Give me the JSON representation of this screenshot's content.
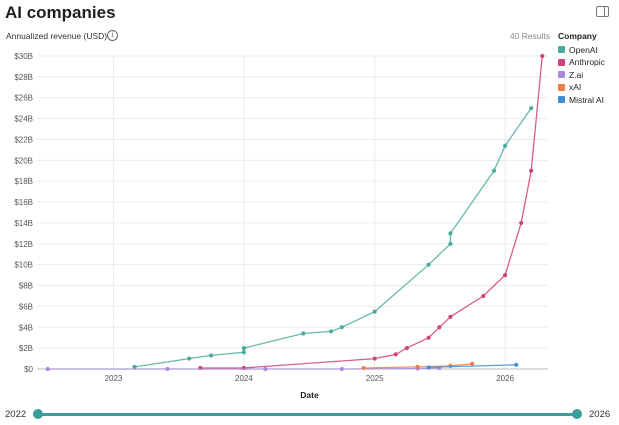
{
  "header": {
    "title": "AI companies",
    "results": "40 Results"
  },
  "chart_data": {
    "type": "line",
    "ylabel": "Annualized revenue (USD)",
    "xlabel": "Date",
    "ylim": [
      0,
      30
    ],
    "xlim": [
      "2022-06-01",
      "2026-05-01"
    ],
    "y_ticks": [
      "$0",
      "$2B",
      "$4B",
      "$6B",
      "$8B",
      "$10B",
      "$12B",
      "$14B",
      "$16B",
      "$18B",
      "$20B",
      "$22B",
      "$24B",
      "$26B",
      "$28B",
      "$30B"
    ],
    "x_ticks": [
      "2023",
      "2024",
      "2025",
      "2026"
    ],
    "grid": true,
    "legend_title": "Company",
    "legend_position": "top-right",
    "series": [
      {
        "name": "OpenAI",
        "color": "#4aab9c",
        "points": [
          [
            "2023-03-01",
            0.2
          ],
          [
            "2023-08-01",
            1.0
          ],
          [
            "2023-10-01",
            1.3
          ],
          [
            "2024-01-01",
            1.6
          ],
          [
            "2024-01-01",
            2.0
          ],
          [
            "2024-06-15",
            3.4
          ],
          [
            "2024-09-01",
            3.6
          ],
          [
            "2024-10-01",
            4.0
          ],
          [
            "2025-01-01",
            5.5
          ],
          [
            "2025-06-01",
            10.0
          ],
          [
            "2025-08-01",
            12.0
          ],
          [
            "2025-08-01",
            13.0
          ],
          [
            "2025-12-01",
            19.0
          ],
          [
            "2026-01-01",
            21.4
          ],
          [
            "2026-03-15",
            25.0
          ]
        ]
      },
      {
        "name": "Anthropic",
        "color": "#d0427a",
        "points": [
          [
            "2023-09-01",
            0.1
          ],
          [
            "2024-01-01",
            0.1
          ],
          [
            "2025-01-01",
            1.0
          ],
          [
            "2025-03-01",
            1.4
          ],
          [
            "2025-04-01",
            2.0
          ],
          [
            "2025-06-01",
            3.0
          ],
          [
            "2025-07-01",
            4.0
          ],
          [
            "2025-08-01",
            5.0
          ],
          [
            "2025-11-01",
            7.0
          ],
          [
            "2026-01-01",
            9.0
          ],
          [
            "2026-02-15",
            14.0
          ],
          [
            "2026-03-15",
            19.0
          ],
          [
            "2026-04-15",
            30.0
          ]
        ]
      },
      {
        "name": "Z.ai",
        "color": "#a88be0",
        "points": [
          [
            "2022-07-01",
            0.0
          ],
          [
            "2023-06-01",
            0.0
          ],
          [
            "2024-03-01",
            0.0
          ],
          [
            "2024-10-01",
            0.0
          ],
          [
            "2025-05-01",
            0.05
          ],
          [
            "2025-07-01",
            0.1
          ]
        ]
      },
      {
        "name": "xAI",
        "color": "#e8804b",
        "points": [
          [
            "2024-12-01",
            0.1
          ],
          [
            "2025-05-01",
            0.2
          ],
          [
            "2025-08-01",
            0.3
          ],
          [
            "2025-10-01",
            0.5
          ]
        ]
      },
      {
        "name": "Mistral AI",
        "color": "#3e8fd3",
        "points": [
          [
            "2025-06-01",
            0.15
          ],
          [
            "2026-02-01",
            0.4
          ]
        ]
      }
    ]
  },
  "slider": {
    "start_label": "2022",
    "end_label": "2026",
    "start_value": 0,
    "end_value": 1
  },
  "icons": {
    "info": "info-icon",
    "panel": "side-panel-toggle-icon"
  }
}
